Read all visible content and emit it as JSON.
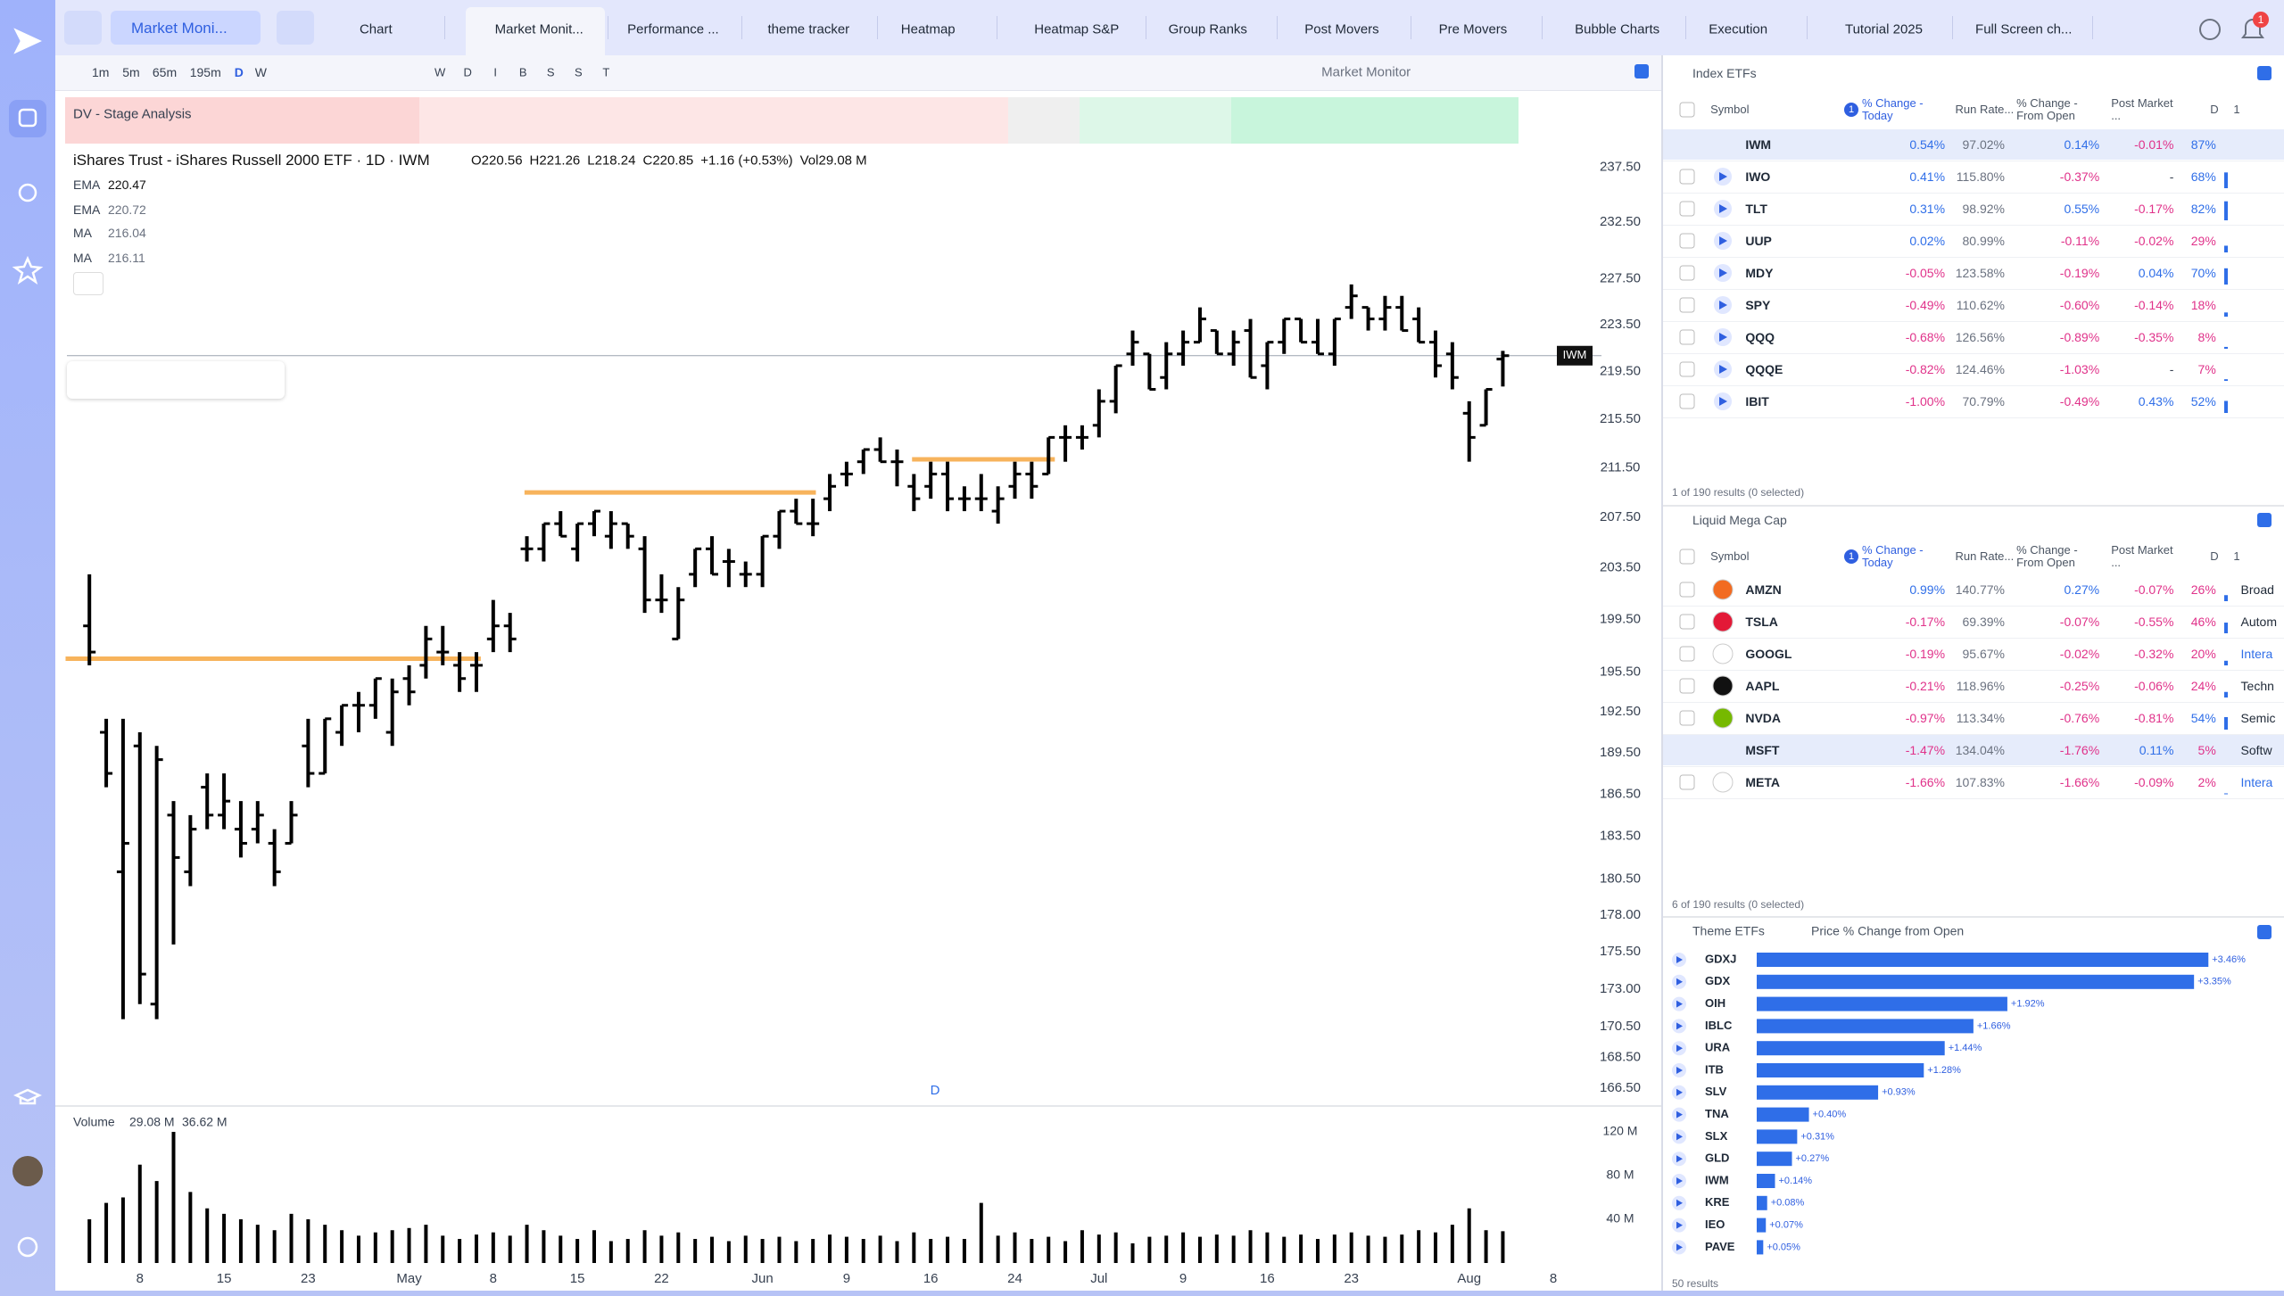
{
  "app": {
    "search": "Market Moni...",
    "tabs": [
      "Chart",
      "Market Monit...",
      "Performance ...",
      "theme tracker",
      "Heatmap",
      "Heatmap S&P",
      "Group Ranks",
      "Post Movers",
      "Pre Movers",
      "Bubble Charts",
      "Execution",
      "Tutorial 2025",
      "Full Screen ch..."
    ],
    "notification_count": "1"
  },
  "toolbar": {
    "intervals": [
      "1m",
      "5m",
      "65m",
      "195m",
      "D",
      "W"
    ],
    "session_letters": [
      "W",
      "D",
      "I",
      "B",
      "S",
      "S",
      "T"
    ],
    "layout": "Market Monitor"
  },
  "indicator_bar": {
    "title": "DV - Stage Analysis"
  },
  "legend": {
    "title": "iShares Trust - iShares Russell 2000 ETF · 1D · IWM",
    "ohlc": [
      "O220.56",
      "H221.26",
      "L218.24",
      "C220.85",
      "+1.16 (+0.53%)",
      "Vol29.08 M"
    ],
    "indicators": [
      {
        "name": "EMA",
        "value": "220.47"
      },
      {
        "name": "EMA",
        "value": "220.72"
      },
      {
        "name": "MA",
        "value": "216.04"
      },
      {
        "name": "MA",
        "value": "216.11"
      }
    ]
  },
  "price_tag": "IWM",
  "session_marker": "D",
  "chart_data": [
    {
      "type": "ohlc",
      "color": "#000000",
      "log": true,
      "grid": false,
      "categories": [
        null,
        null,
        null,
        "8",
        null,
        null,
        null,
        null,
        "15",
        null,
        null,
        null,
        null,
        "23",
        null,
        null,
        null,
        null,
        null,
        "May",
        null,
        null,
        null,
        null,
        "8",
        null,
        null,
        null,
        null,
        "15",
        null,
        null,
        null,
        null,
        "22",
        null,
        null,
        null,
        null,
        null,
        "Jun",
        null,
        null,
        null,
        null,
        "9",
        null,
        null,
        null,
        null,
        "16",
        null,
        null,
        null,
        null,
        "24",
        null,
        null,
        null,
        null,
        "Jul",
        null,
        null,
        null,
        null,
        "9",
        null,
        null,
        null,
        null,
        "16",
        null,
        null,
        null,
        null,
        "23",
        null,
        null,
        null,
        null,
        null,
        null,
        "Aug",
        null,
        null,
        null,
        null,
        "8"
      ],
      "ohlc": [
        [
          199,
          203,
          196,
          197
        ],
        [
          191,
          192,
          187,
          188
        ],
        [
          181,
          192,
          171,
          183
        ],
        [
          190,
          191,
          172,
          174
        ],
        [
          172,
          190,
          171,
          189
        ],
        [
          185,
          186,
          176,
          182
        ],
        [
          181,
          185,
          180,
          184
        ],
        [
          187,
          188,
          184,
          185
        ],
        [
          185,
          188,
          184,
          186
        ],
        [
          184,
          186,
          182,
          183
        ],
        [
          184,
          186,
          183,
          185
        ],
        [
          183,
          184,
          180,
          181
        ],
        [
          183,
          186,
          183,
          185
        ],
        [
          190,
          192,
          187,
          188
        ],
        [
          188,
          192,
          188,
          192
        ],
        [
          191,
          193,
          190,
          193
        ],
        [
          193,
          194,
          191,
          193
        ],
        [
          193,
          195,
          192,
          195
        ],
        [
          191,
          195,
          190,
          194
        ],
        [
          195,
          196,
          193,
          194
        ],
        [
          196,
          199,
          195,
          198
        ],
        [
          197,
          199,
          196,
          197
        ],
        [
          196,
          197,
          194,
          195
        ],
        [
          196,
          197,
          194,
          196
        ],
        [
          198,
          201,
          197,
          199
        ],
        [
          199,
          200,
          197,
          198
        ],
        [
          205,
          206,
          204,
          205
        ],
        [
          205,
          207,
          204,
          207
        ],
        [
          207,
          208,
          206,
          206
        ],
        [
          205,
          207,
          204,
          207
        ],
        [
          207,
          208,
          206,
          208
        ],
        [
          206,
          208,
          205,
          207
        ],
        [
          207,
          207,
          205,
          206
        ],
        [
          205,
          206,
          200,
          201
        ],
        [
          201,
          203,
          200,
          201
        ],
        [
          198,
          202,
          198,
          201
        ],
        [
          203,
          205,
          202,
          205
        ],
        [
          205,
          206,
          203,
          203
        ],
        [
          204,
          205,
          202,
          204
        ],
        [
          203,
          204,
          202,
          203
        ],
        [
          203,
          206,
          202,
          206
        ],
        [
          206,
          208,
          205,
          208
        ],
        [
          208,
          209,
          207,
          207
        ],
        [
          207,
          209,
          206,
          207
        ],
        [
          209,
          211,
          208,
          210
        ],
        [
          211,
          212,
          210,
          211
        ],
        [
          212,
          213,
          211,
          213
        ],
        [
          213,
          214,
          212,
          212
        ],
        [
          212,
          213,
          210,
          212
        ],
        [
          210,
          211,
          208,
          209
        ],
        [
          210,
          212,
          209,
          211
        ],
        [
          211,
          212,
          208,
          209
        ],
        [
          209,
          210,
          208,
          209
        ],
        [
          209,
          211,
          208,
          209
        ],
        [
          208,
          210,
          207,
          209
        ],
        [
          210,
          212,
          209,
          211
        ],
        [
          211,
          212,
          209,
          210
        ],
        [
          211,
          214,
          211,
          214
        ],
        [
          214,
          215,
          212,
          214
        ],
        [
          214,
          215,
          213,
          214
        ],
        [
          215,
          218,
          214,
          217
        ],
        [
          217,
          220,
          216,
          220
        ],
        [
          221,
          223,
          220,
          222
        ],
        [
          221,
          221,
          218,
          218
        ],
        [
          219,
          222,
          218,
          221
        ],
        [
          221,
          223,
          220,
          222
        ],
        [
          222,
          225,
          222,
          224
        ],
        [
          223,
          223,
          221,
          221
        ],
        [
          221,
          223,
          220,
          222
        ],
        [
          223,
          224,
          219,
          219
        ],
        [
          220,
          222,
          218,
          222
        ],
        [
          222,
          224,
          221,
          224
        ],
        [
          224,
          224,
          222,
          222
        ],
        [
          222,
          224,
          221,
          221
        ],
        [
          221,
          224,
          220,
          224
        ],
        [
          225,
          227,
          224,
          226
        ],
        [
          225,
          225,
          223,
          224
        ],
        [
          224,
          226,
          223,
          225
        ],
        [
          225,
          226,
          223,
          223
        ],
        [
          224,
          225,
          222,
          222
        ],
        [
          222,
          223,
          219,
          220
        ],
        [
          221,
          222,
          218,
          219
        ],
        [
          216,
          217,
          212,
          214
        ],
        [
          215,
          218,
          215,
          218
        ],
        [
          220.56,
          221.26,
          218.24,
          220.85
        ],
        null,
        null,
        null
      ],
      "ylim": [
        165.6,
        239.5
      ],
      "yticks": [
        {
          "value": 237.5,
          "label": "237.50"
        },
        {
          "value": 232.5,
          "label": "232.50"
        },
        {
          "value": 227.5,
          "label": "227.50"
        },
        {
          "value": 223.5,
          "label": "223.50"
        },
        {
          "value": 219.5,
          "label": "219.50"
        },
        {
          "value": 215.5,
          "label": "215.50"
        },
        {
          "value": 211.5,
          "label": "211.50"
        },
        {
          "value": 207.5,
          "label": "207.50"
        },
        {
          "value": 203.5,
          "label": "203.50"
        },
        {
          "value": 199.5,
          "label": "199.50"
        },
        {
          "value": 195.5,
          "label": "195.50"
        },
        {
          "value": 192.5,
          "label": "192.50"
        },
        {
          "value": 189.5,
          "label": "189.50"
        },
        {
          "value": 186.5,
          "label": "186.50"
        },
        {
          "value": 183.5,
          "label": "183.50"
        },
        {
          "value": 180.5,
          "label": "180.50"
        },
        {
          "value": 178,
          "label": "178.00"
        },
        {
          "value": 175.5,
          "label": "175.50"
        },
        {
          "value": 173,
          "label": "173.00"
        },
        {
          "value": 170.5,
          "label": "170.50"
        },
        {
          "value": 168.5,
          "label": "168.50"
        },
        {
          "value": 166.5,
          "label": "166.50"
        }
      ],
      "levels": [
        196.5,
        209.5,
        212.2
      ],
      "level_color": "#f7b35c"
    },
    {
      "type": "bar",
      "title": "Volume",
      "legend": [
        "29.08 M",
        "36.62 M"
      ],
      "color": "#000000",
      "values": [
        40,
        55,
        60,
        90,
        75,
        120,
        65,
        50,
        45,
        40,
        35,
        30,
        45,
        40,
        35,
        30,
        25,
        28,
        30,
        32,
        35,
        25,
        22,
        26,
        28,
        25,
        35,
        30,
        25,
        22,
        30,
        20,
        22,
        30,
        25,
        28,
        22,
        24,
        20,
        25,
        22,
        24,
        20,
        22,
        26,
        24,
        22,
        25,
        20,
        28,
        22,
        24,
        22,
        55,
        25,
        28,
        22,
        24,
        20,
        30,
        26,
        28,
        18,
        24,
        25,
        28,
        24,
        26,
        25,
        30,
        28,
        24,
        26,
        22,
        26,
        28,
        25,
        24,
        26,
        30,
        28,
        35,
        50,
        30,
        29.08,
        null,
        null,
        null
      ],
      "ylim": [
        0,
        131
      ],
      "yticks": [
        {
          "value": 40,
          "label": "40 M"
        },
        {
          "value": 80,
          "label": "80 M"
        },
        {
          "value": 120,
          "label": "120 M"
        }
      ]
    },
    {
      "type": "hbar",
      "title": "Theme ETFs",
      "subtitle": "Price % Change from Open",
      "color": "#2f6ee8",
      "categories": [
        "GDXJ",
        "GDX",
        "OIH",
        "IBLC",
        "URA",
        "ITB",
        "SLV",
        "TNA",
        "SLX",
        "GLD",
        "IWM",
        "KRE",
        "IEO",
        "PAVE"
      ],
      "values": [
        3.46,
        3.35,
        1.92,
        1.66,
        1.44,
        1.28,
        0.93,
        0.4,
        0.31,
        0.27,
        0.14,
        0.08,
        0.07,
        0.05
      ],
      "value_labels": [
        "+3.46%",
        "+3.35%",
        "+1.92%",
        "+1.66%",
        "+1.44%",
        "+1.28%",
        "+0.93%",
        "+0.40%",
        "+0.31%",
        "+0.27%",
        "+0.14%",
        "+0.08%",
        "+0.07%",
        "+0.05%"
      ],
      "xlim": [
        0,
        3.8
      ]
    }
  ],
  "index_etfs": {
    "title": "Index ETFs",
    "sort_badge": "1",
    "columns": [
      "Symbol",
      "% Change - Today",
      "Run Rate...",
      "% Change - From Open",
      "Post Market ...",
      "D",
      "1"
    ],
    "rows": [
      [
        "IWM",
        "0.54%",
        "97.02%",
        "0.14%",
        "-0.01%",
        "87%"
      ],
      [
        "IWO",
        "0.41%",
        "115.80%",
        "-0.37%",
        "-",
        "68%"
      ],
      [
        "TLT",
        "0.31%",
        "98.92%",
        "0.55%",
        "-0.17%",
        "82%"
      ],
      [
        "UUP",
        "0.02%",
        "80.99%",
        "-0.11%",
        "-0.02%",
        "29%"
      ],
      [
        "MDY",
        "-0.05%",
        "123.58%",
        "-0.19%",
        "0.04%",
        "70%"
      ],
      [
        "SPY",
        "-0.49%",
        "110.62%",
        "-0.60%",
        "-0.14%",
        "18%"
      ],
      [
        "QQQ",
        "-0.68%",
        "126.56%",
        "-0.89%",
        "-0.35%",
        "8%"
      ],
      [
        "QQQE",
        "-0.82%",
        "124.46%",
        "-1.03%",
        "-",
        "7%"
      ],
      [
        "IBIT",
        "-1.00%",
        "70.79%",
        "-0.49%",
        "0.43%",
        "52%"
      ]
    ],
    "footer": "1 of 190 results (0 selected)"
  },
  "mega_caps": {
    "title": "Liquid Mega Cap",
    "sort_badge": "1",
    "columns": [
      "Symbol",
      "% Change - Today",
      "Run Rate...",
      "% Change - From Open",
      "Post Market ...",
      "D",
      "1"
    ],
    "rows": [
      [
        "AMZN",
        "0.99%",
        "140.77%",
        "0.27%",
        "-0.07%",
        "26%",
        "Broad"
      ],
      [
        "TSLA",
        "-0.17%",
        "69.39%",
        "-0.07%",
        "-0.55%",
        "46%",
        "Autom"
      ],
      [
        "GOOGL",
        "-0.19%",
        "95.67%",
        "-0.02%",
        "-0.32%",
        "20%",
        "Intera"
      ],
      [
        "AAPL",
        "-0.21%",
        "118.96%",
        "-0.25%",
        "-0.06%",
        "24%",
        "Techn"
      ],
      [
        "NVDA",
        "-0.97%",
        "113.34%",
        "-0.76%",
        "-0.81%",
        "54%",
        "Semic"
      ],
      [
        "MSFT",
        "-1.47%",
        "134.04%",
        "-1.76%",
        "0.11%",
        "5%",
        "Softw"
      ],
      [
        "META",
        "-1.66%",
        "107.83%",
        "-1.66%",
        "-0.09%",
        "2%",
        "Intera"
      ]
    ],
    "footer": "6 of 190 results (0 selected)"
  },
  "theme_footer": "50 results"
}
